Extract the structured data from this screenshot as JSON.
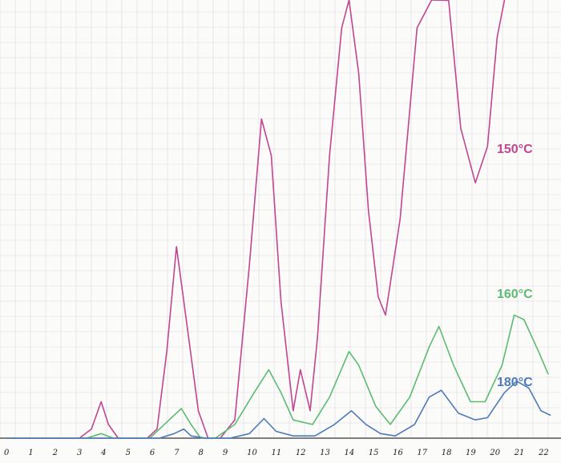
{
  "chart_data": {
    "type": "line",
    "title": "",
    "xlabel": "",
    "ylabel": "",
    "xlim": [
      0,
      22.6
    ],
    "ylim": [
      0,
      100
    ],
    "grid": true,
    "x_ticks": [
      "0",
      "1",
      "2",
      "3",
      "4",
      "5",
      "6",
      "7",
      "8",
      "9",
      "10",
      "11",
      "12",
      "13",
      "14",
      "15",
      "16",
      "17",
      "18",
      "19",
      "20",
      "21",
      "22"
    ],
    "colors": {
      "grid": "#ddd7df",
      "axis": "#555555"
    },
    "series": [
      {
        "name": "150°C",
        "color": "#c0468f",
        "points": [
          [
            0,
            0
          ],
          [
            3.0,
            0
          ],
          [
            3.5,
            2
          ],
          [
            3.9,
            8
          ],
          [
            4.2,
            3
          ],
          [
            4.6,
            0
          ],
          [
            5.8,
            0
          ],
          [
            6.2,
            2
          ],
          [
            6.6,
            19
          ],
          [
            7.0,
            42
          ],
          [
            7.4,
            26
          ],
          [
            7.9,
            6
          ],
          [
            8.3,
            0
          ],
          [
            8.8,
            0
          ],
          [
            9.4,
            4
          ],
          [
            10.0,
            38
          ],
          [
            10.5,
            70
          ],
          [
            10.9,
            62
          ],
          [
            11.3,
            30
          ],
          [
            11.8,
            6
          ],
          [
            12.1,
            15
          ],
          [
            12.5,
            6
          ],
          [
            12.8,
            22
          ],
          [
            13.3,
            62
          ],
          [
            13.8,
            90
          ],
          [
            14.1,
            98
          ],
          [
            14.5,
            80
          ],
          [
            14.9,
            50
          ],
          [
            15.3,
            31
          ],
          [
            15.6,
            27
          ],
          [
            16.2,
            48
          ],
          [
            16.9,
            90
          ],
          [
            17.5,
            108
          ],
          [
            18.2,
            96
          ],
          [
            18.7,
            68
          ],
          [
            19.3,
            56
          ],
          [
            19.8,
            64
          ],
          [
            20.2,
            88
          ],
          [
            20.5,
            108
          ]
        ]
      },
      {
        "name": "160°C",
        "color": "#5dbb72",
        "points": [
          [
            0,
            0
          ],
          [
            3.3,
            0
          ],
          [
            3.9,
            1
          ],
          [
            4.4,
            0
          ],
          [
            5.9,
            0
          ],
          [
            6.7,
            4
          ],
          [
            7.2,
            6.5
          ],
          [
            7.6,
            3
          ],
          [
            8.0,
            0
          ],
          [
            8.6,
            0
          ],
          [
            9.4,
            3
          ],
          [
            10.2,
            10
          ],
          [
            10.8,
            15
          ],
          [
            11.3,
            10
          ],
          [
            11.8,
            4
          ],
          [
            12.6,
            3
          ],
          [
            13.3,
            9
          ],
          [
            14.1,
            19
          ],
          [
            14.5,
            16
          ],
          [
            15.2,
            7
          ],
          [
            15.8,
            3
          ],
          [
            16.6,
            9
          ],
          [
            17.4,
            20
          ],
          [
            17.8,
            24.5
          ],
          [
            18.4,
            16
          ],
          [
            19.1,
            8
          ],
          [
            19.7,
            8
          ],
          [
            20.4,
            16
          ],
          [
            20.9,
            27
          ],
          [
            21.3,
            26
          ],
          [
            21.9,
            19
          ],
          [
            22.3,
            14
          ]
        ]
      },
      {
        "name": "180°C",
        "color": "#4e7ab8",
        "points": [
          [
            0,
            0
          ],
          [
            6.3,
            0
          ],
          [
            6.9,
            1
          ],
          [
            7.3,
            2
          ],
          [
            7.6,
            0.5
          ],
          [
            8.2,
            0
          ],
          [
            9.2,
            0
          ],
          [
            10.0,
            1
          ],
          [
            10.6,
            4.3
          ],
          [
            11.1,
            1.5
          ],
          [
            11.8,
            0.5
          ],
          [
            12.7,
            0.5
          ],
          [
            13.5,
            3
          ],
          [
            14.2,
            6
          ],
          [
            14.8,
            3
          ],
          [
            15.4,
            1
          ],
          [
            16.0,
            0.5
          ],
          [
            16.8,
            3
          ],
          [
            17.4,
            9
          ],
          [
            17.9,
            10.5
          ],
          [
            18.6,
            5.5
          ],
          [
            19.3,
            4
          ],
          [
            19.8,
            4.5
          ],
          [
            20.5,
            10
          ],
          [
            21.0,
            12.5
          ],
          [
            21.5,
            11
          ],
          [
            22.0,
            6
          ],
          [
            22.4,
            5
          ]
        ]
      }
    ]
  }
}
